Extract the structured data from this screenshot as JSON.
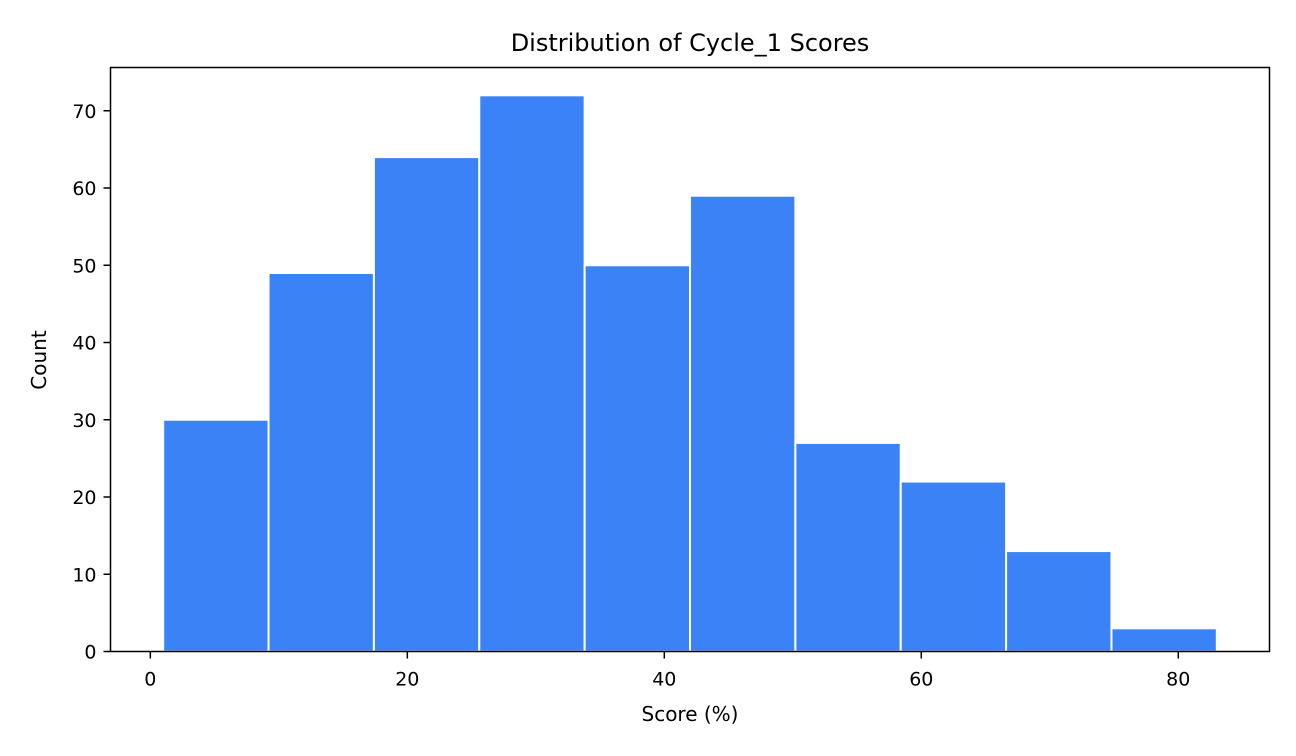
{
  "chart_data": {
    "type": "bar",
    "subtype": "histogram",
    "title": "Distribution of Cycle_1 Scores",
    "xlabel": "Score (%)",
    "ylabel": "Count",
    "bin_edges": [
      1.0,
      9.2,
      17.4,
      25.6,
      33.8,
      42.0,
      50.2,
      58.4,
      66.6,
      74.8,
      83.0
    ],
    "values": [
      30,
      49,
      64,
      72,
      50,
      59,
      27,
      22,
      13,
      3
    ],
    "xlim": [
      -3.1,
      87.1
    ],
    "ylim": [
      0,
      75.6
    ],
    "xticks": [
      0,
      20,
      40,
      60,
      80
    ],
    "yticks": [
      0,
      10,
      20,
      30,
      40,
      50,
      60,
      70
    ],
    "bar_color": "#3b82f6",
    "edge_color": "#ffffff",
    "grid": false,
    "legend": "none"
  }
}
